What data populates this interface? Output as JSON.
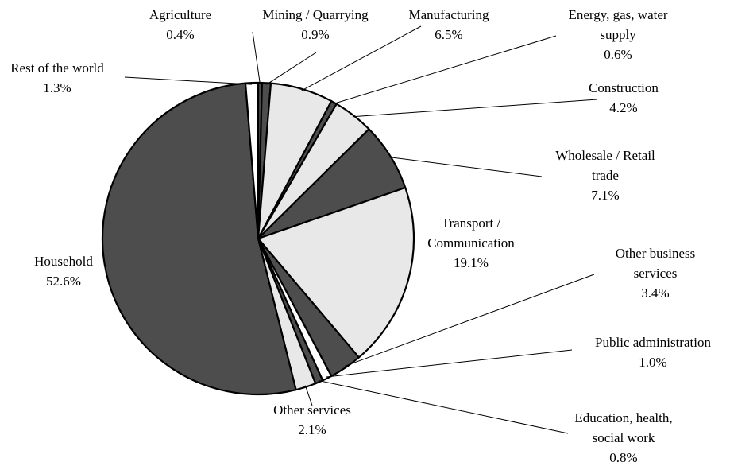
{
  "chart_data": {
    "type": "pie",
    "categories": [
      "Agriculture",
      "Mining / Quarrying",
      "Manufacturing",
      "Energy, gas, water supply",
      "Construction",
      "Wholesale / Retail trade",
      "Transport / Communication",
      "Other business services",
      "Public administration",
      "Education, health, social work",
      "Other services",
      "Household",
      "Rest of the world"
    ],
    "values": [
      0.4,
      0.9,
      6.5,
      0.6,
      4.2,
      7.1,
      19.1,
      3.4,
      1.0,
      0.8,
      2.1,
      52.6,
      1.3
    ],
    "value_labels": [
      "0.4%",
      "0.9%",
      "6.5%",
      "0.6%",
      "4.2%",
      "7.1%",
      "19.1%",
      "3.4%",
      "1.0%",
      "0.8%",
      "2.1%",
      "52.6%",
      "1.3%"
    ],
    "colors": [
      "#4d4d4d",
      "#4d4d4d",
      "#e8e8e8",
      "#4d4d4d",
      "#e8e8e8",
      "#4d4d4d",
      "#e8e8e8",
      "#4d4d4d",
      "#ffffff",
      "#4d4d4d",
      "#e8e8e8",
      "#4d4d4d",
      "#ffffff"
    ]
  }
}
